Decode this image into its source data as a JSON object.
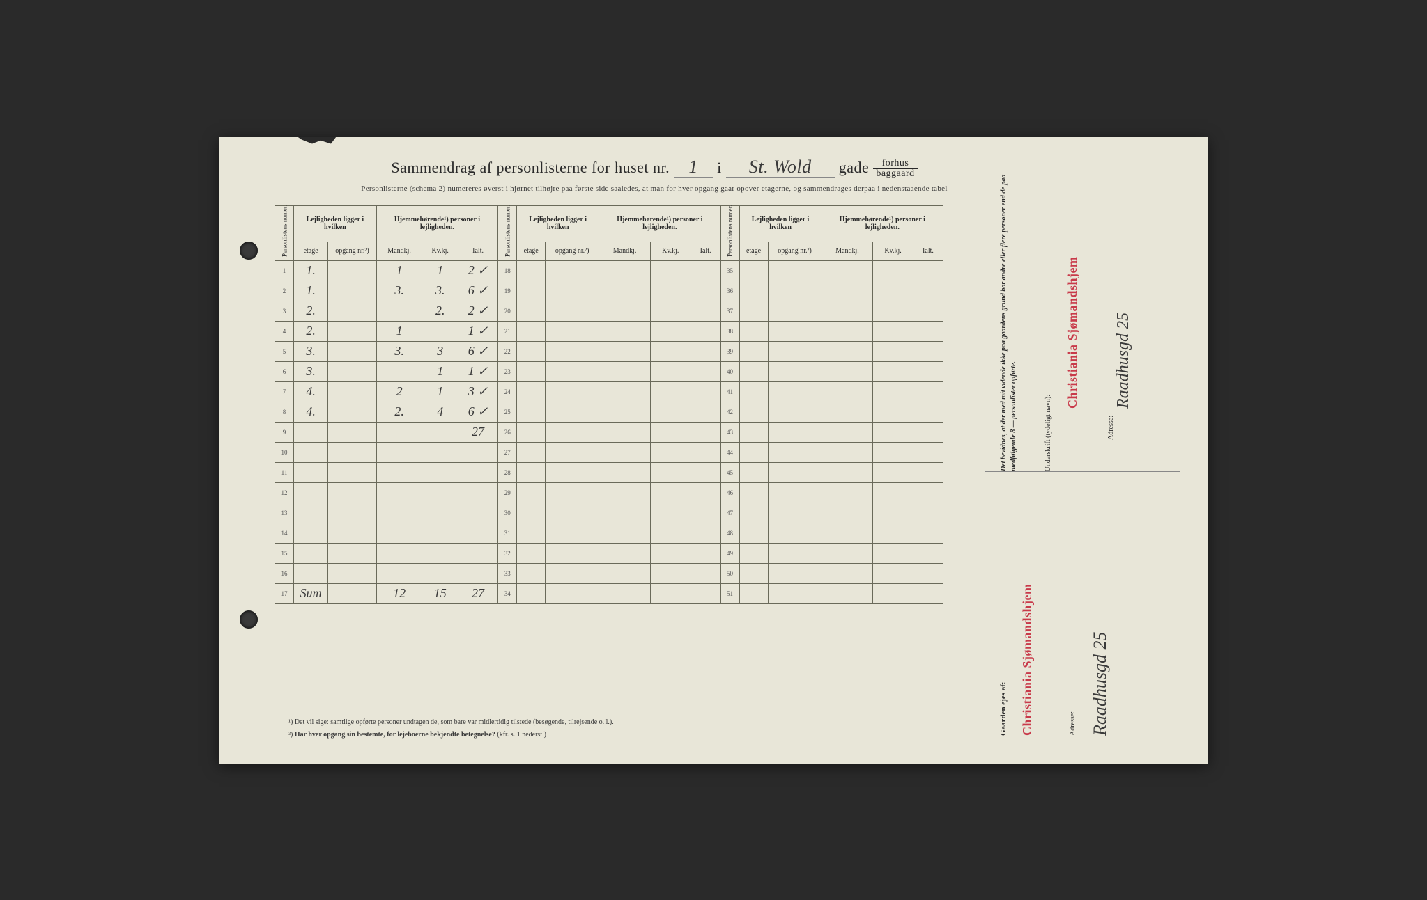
{
  "title": {
    "prefix": "Sammendrag af personlisterne for huset nr.",
    "house_no": "1",
    "mid": "i",
    "street": "St. Wold",
    "suffix": "gade",
    "fraction_top": "forhus",
    "fraction_bottom": "baggaard"
  },
  "subtitle": "Personlisterne (schema 2) numereres øverst i hjørnet tilhøjre paa første side saaledes, at man for hver opgang gaar opover etagerne, og sammendrages derpaa i nedenstaaende tabel",
  "headers": {
    "personlistens_numer": "Personlistens numer.",
    "lejligheden": "Lejligheden ligger i hvilken",
    "hjemmehorende": "Hjemmehørende¹) personer i lejligheden.",
    "etage": "etage",
    "opgang": "opgang nr.²)",
    "mandkj": "Mandkj.",
    "kvkj": "Kv.kj.",
    "ialt": "Ialt."
  },
  "block1": {
    "start": 1,
    "rows": [
      {
        "etage": "1.",
        "opgang": "",
        "m": "1",
        "k": "1",
        "i": "2 ✓"
      },
      {
        "etage": "1.",
        "opgang": "",
        "m": "3.",
        "k": "3.",
        "i": "6 ✓"
      },
      {
        "etage": "2.",
        "opgang": "",
        "m": "",
        "k": "2.",
        "i": "2 ✓"
      },
      {
        "etage": "2.",
        "opgang": "",
        "m": "1",
        "k": "",
        "i": "1 ✓"
      },
      {
        "etage": "3.",
        "opgang": "",
        "m": "3.",
        "k": "3",
        "i": "6 ✓"
      },
      {
        "etage": "3.",
        "opgang": "",
        "m": "",
        "k": "1",
        "i": "1 ✓"
      },
      {
        "etage": "4.",
        "opgang": "",
        "m": "2",
        "k": "1",
        "i": "3 ✓"
      },
      {
        "etage": "4.",
        "opgang": "",
        "m": "2.",
        "k": "4",
        "i": "6 ✓"
      },
      {
        "etage": "",
        "opgang": "",
        "m": "",
        "k": "",
        "i": "27"
      },
      {
        "etage": "",
        "opgang": "",
        "m": "",
        "k": "",
        "i": ""
      },
      {
        "etage": "",
        "opgang": "",
        "m": "",
        "k": "",
        "i": ""
      },
      {
        "etage": "",
        "opgang": "",
        "m": "",
        "k": "",
        "i": ""
      },
      {
        "etage": "",
        "opgang": "",
        "m": "",
        "k": "",
        "i": ""
      },
      {
        "etage": "",
        "opgang": "",
        "m": "",
        "k": "",
        "i": ""
      },
      {
        "etage": "",
        "opgang": "",
        "m": "",
        "k": "",
        "i": ""
      },
      {
        "etage": "",
        "opgang": "",
        "m": "",
        "k": "",
        "i": ""
      },
      {
        "etage": "Sum",
        "opgang": "",
        "m": "12",
        "k": "15",
        "i": "27"
      }
    ]
  },
  "block2": {
    "start": 18,
    "count": 17
  },
  "block3": {
    "start": 35,
    "count": 17
  },
  "footnotes": {
    "f1": "¹)  Det vil sige: samtlige opførte personer undtagen de, som bare var midlertidig tilstede (besøgende, tilrejsende o. l.).",
    "f2_prefix": "²)  ",
    "f2_bold": "Har hver opgang sin bestemte, for lejeboerne bekjendte betegnelse?",
    "f2_suffix": " (kfr. s. 1 nederst.)"
  },
  "right": {
    "attestation": "Det bevidnes, at der med mit vidende ikke paa gaardens grund bor andre eller flere personer end de paa medfølgende 8 — personlister opførte.",
    "underskrift_label": "Underskrift (tydeligt navn):",
    "stamp": "Christiania Sjømandshjem",
    "adresse_label": "Adresse:",
    "address": "Raadhusgd 25",
    "owner_label": "Gaarden ejes af:",
    "address2": "Raadhusgd 25"
  },
  "colors": {
    "paper": "#e8e6d8",
    "ink": "#2a2a2a",
    "rule": "#6a6a5a",
    "stamp_red": "#c83a4a",
    "handwriting": "#3a3a3a"
  }
}
